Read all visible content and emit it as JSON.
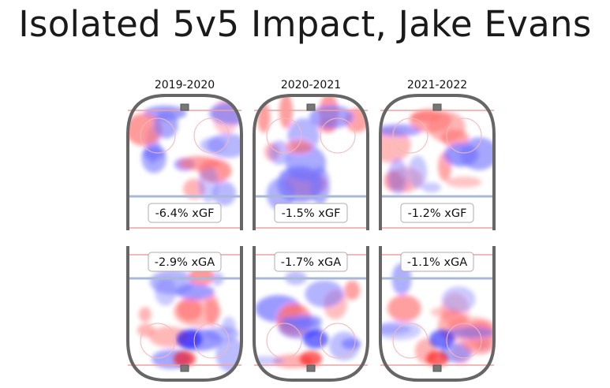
{
  "title": "Isolated 5v5 Impact, Jake Evans",
  "chart_data": {
    "type": "heatmap",
    "title": "Isolated 5v5 Impact, Jake Evans",
    "panels": [
      {
        "season": "2019-2020",
        "xGF": "-6.4% xGF",
        "xGA": "-2.9% xGA"
      },
      {
        "season": "2020-2021",
        "xGF": "-1.5% xGF",
        "xGA": "-1.7% xGA"
      },
      {
        "season": "2021-2022",
        "xGF": "-1.2% xGF",
        "xGA": "-1.1% xGA"
      }
    ],
    "color_scale": {
      "negative": "#0000ff",
      "positive": "#ff0000"
    },
    "description_scale": "blue = lower than league average, red = higher than league average"
  }
}
